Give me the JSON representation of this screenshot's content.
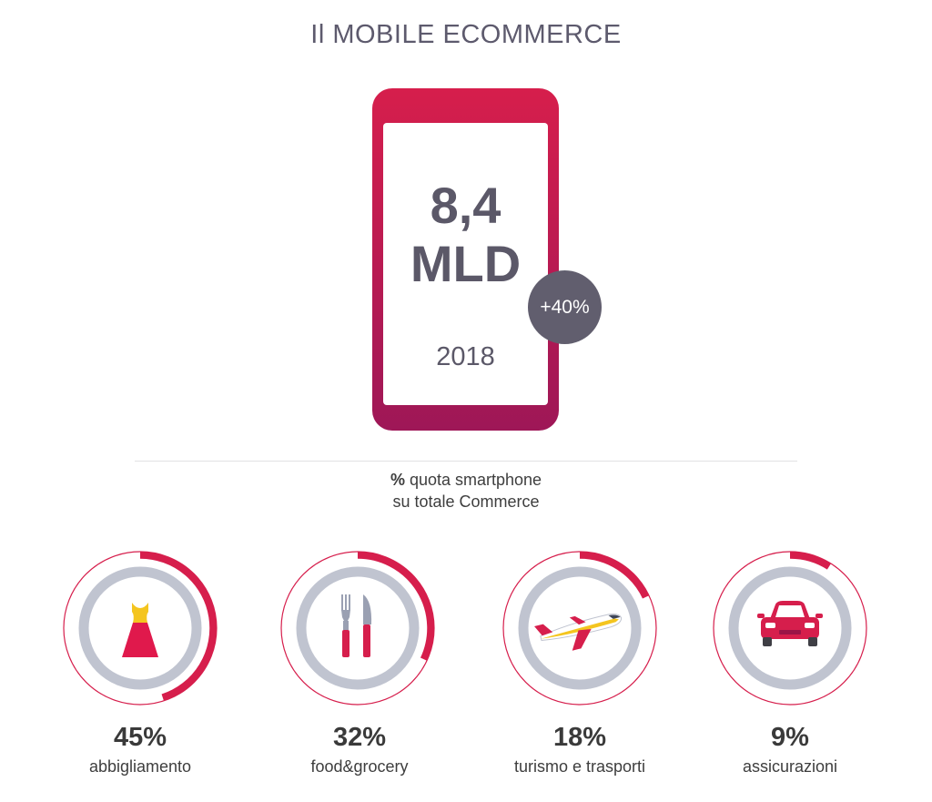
{
  "header": {
    "title": "Il MOBILE ECOMMERCE"
  },
  "phone": {
    "amount_line1": "8,4",
    "amount_line2": "MLD",
    "growth_badge": "+40%",
    "year": "2018"
  },
  "caption": {
    "bold_part": "%",
    "line1_rest": " quota smartphone",
    "line2": "su totale Commerce"
  },
  "colors": {
    "accent": "#d61e4c",
    "accent_dark": "#a0175a",
    "ring_grey": "#c0c4d0",
    "badge": "#615e6e",
    "title": "#5d5a6d"
  },
  "categories": [
    {
      "value_label": "45%",
      "share": 0.45,
      "label": "abbigliamento",
      "icon": "dress-icon"
    },
    {
      "value_label": "32%",
      "share": 0.32,
      "label": "food&grocery",
      "icon": "cutlery-icon"
    },
    {
      "value_label": "18%",
      "share": 0.18,
      "label": "turismo e trasporti",
      "icon": "airplane-icon"
    },
    {
      "value_label": "9%",
      "share": 0.09,
      "label": "assicurazioni",
      "icon": "car-icon"
    }
  ]
}
